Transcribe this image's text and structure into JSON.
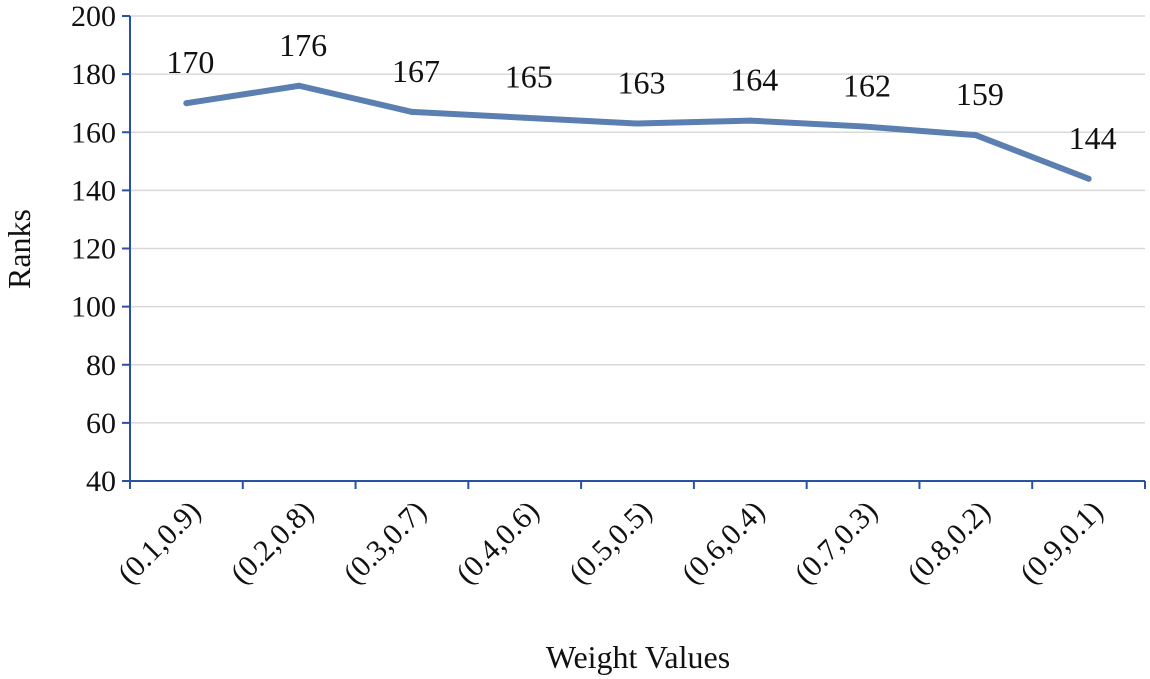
{
  "chart_data": {
    "type": "line",
    "categories": [
      "(0.1,0.9)",
      "(0.2,0.8)",
      "(0.3,0.7)",
      "(0.4,0.6)",
      "(0.5,0.5)",
      "(0.6,0.4)",
      "(0.7,0.3)",
      "(0.8,0.2)",
      "(0.9,0.1)"
    ],
    "series": [
      {
        "values": [
          170,
          176,
          167,
          165,
          163,
          164,
          162,
          159,
          144
        ],
        "color": "#5b7fb0"
      }
    ],
    "data_labels": [
      "170",
      "176",
      "167",
      "165",
      "163",
      "164",
      "162",
      "159",
      "144"
    ],
    "xlabel": "Weight Values",
    "ylabel": "Ranks",
    "ylim": [
      40,
      200
    ],
    "yticks": [
      "40",
      "60",
      "80",
      "100",
      "120",
      "140",
      "160",
      "180",
      "200"
    ],
    "grid": true,
    "axis_color": "#2a52a3",
    "grid_color": "#d9d9d9"
  }
}
